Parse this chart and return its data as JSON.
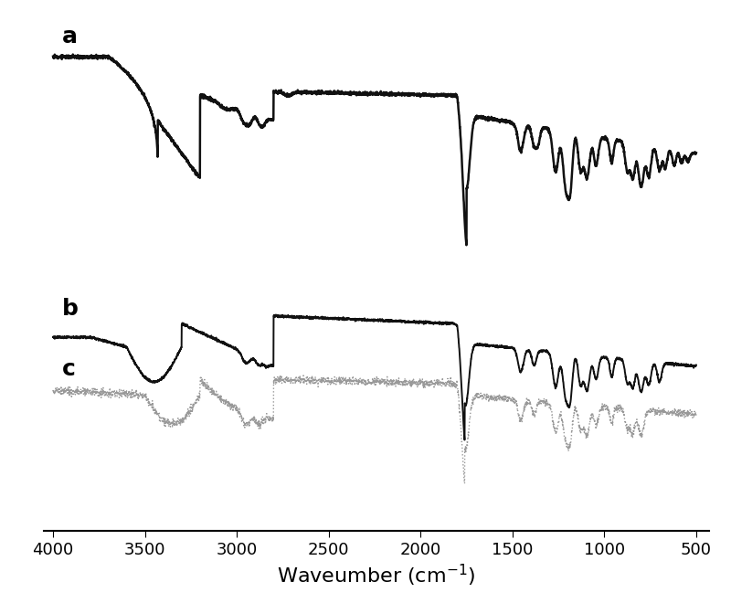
{
  "xlabel_plain": "Waveumber (cm$^{-1}$)",
  "label_a": "a",
  "label_b": "b",
  "label_c": "c",
  "line_color_ab": "#111111",
  "line_color_c": "#999999",
  "linewidth_a": 1.8,
  "linewidth_b": 1.4,
  "linewidth_c": 1.0,
  "figsize": [
    8.0,
    6.6
  ],
  "dpi": 100,
  "xticks": [
    4000,
    3500,
    3000,
    2500,
    2000,
    1500,
    1000,
    500
  ],
  "background": "#ffffff"
}
